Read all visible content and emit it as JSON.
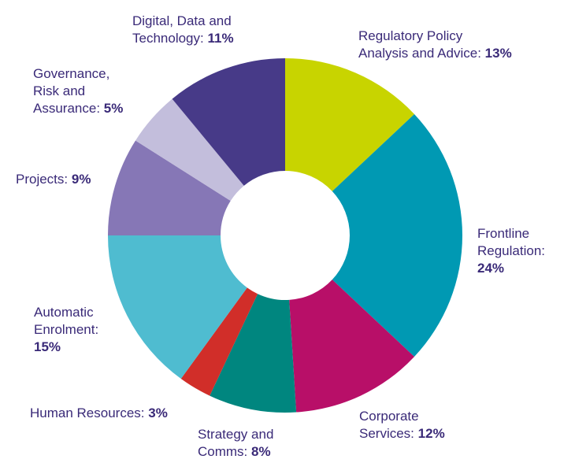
{
  "chart_data": {
    "type": "pie",
    "donut": true,
    "slices": [
      {
        "label": "Regulatory Policy Analysis and Advice",
        "value": 13,
        "color": "#c8d400",
        "lines": [
          "Regulatory Policy",
          "Analysis and Advice:"
        ],
        "display": "13%"
      },
      {
        "label": "Frontline Regulation",
        "value": 24,
        "color": "#0099b3",
        "lines": [
          "Frontline",
          "Regulation:"
        ],
        "display": "24%"
      },
      {
        "label": "Corporate Services",
        "value": 12,
        "color": "#b80f68",
        "lines": [
          "Corporate",
          "Services:"
        ],
        "display": "12%"
      },
      {
        "label": "Strategy and Comms",
        "value": 8,
        "color": "#00867f",
        "lines": [
          "Strategy and",
          "Comms:"
        ],
        "display": "8%"
      },
      {
        "label": "Human Resources",
        "value": 3,
        "color": "#d12e29",
        "lines": [
          "Human Resources:"
        ],
        "display": "3%"
      },
      {
        "label": "Automatic Enrolment",
        "value": 15,
        "color": "#4fbcd0",
        "lines": [
          "Automatic",
          "Enrolment:"
        ],
        "display": "15%"
      },
      {
        "label": "Projects",
        "value": 9,
        "color": "#8677b6",
        "lines": [
          "Projects:"
        ],
        "display": "9%"
      },
      {
        "label": "Governance, Risk and Assurance",
        "value": 5,
        "color": "#c3bedc",
        "lines": [
          "Governance,",
          "Risk and",
          "Assurance:"
        ],
        "display": "5%"
      },
      {
        "label": "Digital, Data and Technology",
        "value": 11,
        "color": "#473a88",
        "lines": [
          "Digital, Data and",
          "Technology:"
        ],
        "display": "11%"
      }
    ]
  }
}
